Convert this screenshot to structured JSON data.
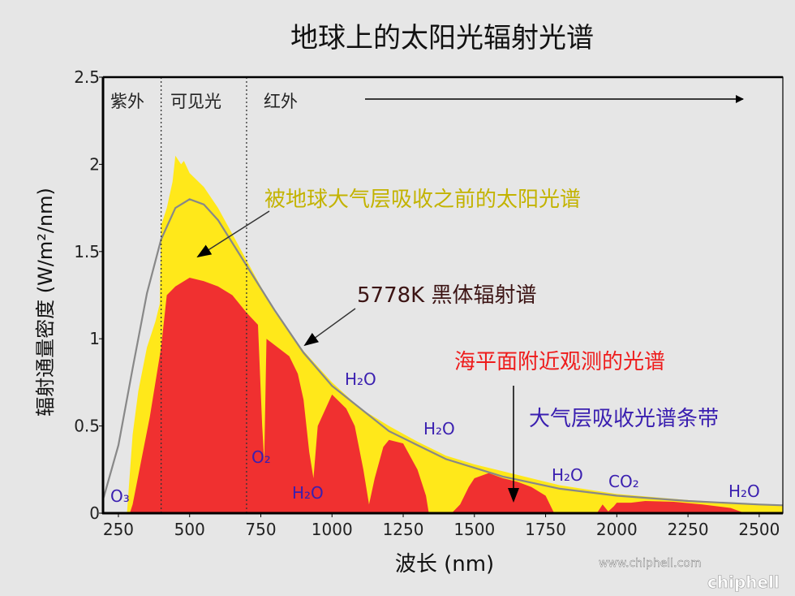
{
  "chart_data": {
    "type": "area",
    "title": "地球上的太阳光辐射光谱",
    "xlabel": "波长 (nm)",
    "ylabel": "辐射通量密度 (W/m²/nm)",
    "xlim": [
      196,
      2583
    ],
    "ylim": [
      0,
      2.5
    ],
    "xticks": [
      250,
      500,
      750,
      1000,
      1250,
      1500,
      1750,
      2000,
      2250,
      2500
    ],
    "yticks": [
      0,
      0.5,
      1,
      1.5,
      2,
      2.5
    ],
    "ytick_labels": [
      "0",
      "0.5",
      "1",
      "1.5",
      "2",
      "2.5"
    ],
    "grid": false,
    "regions": [
      {
        "label": "紫外",
        "to": 400
      },
      {
        "label": "可见光",
        "from": 400,
        "to": 700
      },
      {
        "label": "红外",
        "from": 700
      }
    ],
    "series": [
      {
        "name": "被地球大气层吸收之前的太阳光谱",
        "color": "#ffe81a",
        "x": [
          280,
          300,
          320,
          350,
          380,
          395,
          400,
          420,
          440,
          450,
          470,
          480,
          500,
          550,
          600,
          650,
          700,
          750,
          800,
          900,
          1000,
          1100,
          1200,
          1300,
          1400,
          1500,
          1600,
          1700,
          1800,
          2000,
          2250,
          2500,
          2583
        ],
        "y": [
          0,
          0.45,
          0.7,
          0.95,
          1.1,
          1.2,
          1.65,
          1.75,
          1.9,
          2.05,
          2.0,
          2.02,
          1.95,
          1.87,
          1.75,
          1.6,
          1.45,
          1.3,
          1.15,
          0.93,
          0.75,
          0.6,
          0.5,
          0.41,
          0.33,
          0.28,
          0.24,
          0.2,
          0.16,
          0.11,
          0.075,
          0.05,
          0.045
        ]
      },
      {
        "name": "海平面附近观测的光谱",
        "color": "#f03030",
        "x": [
          290,
          300,
          330,
          360,
          380,
          400,
          420,
          450,
          500,
          550,
          600,
          650,
          700,
          740,
          755,
          762,
          770,
          850,
          880,
          900,
          920,
          935,
          950,
          1000,
          1050,
          1080,
          1110,
          1130,
          1150,
          1180,
          1200,
          1250,
          1300,
          1330,
          1340,
          1420,
          1450,
          1480,
          1500,
          1550,
          1600,
          1650,
          1700,
          1750,
          1780,
          1930,
          1950,
          1970,
          1990,
          2000,
          2050,
          2100,
          2200,
          2300,
          2400,
          2450
        ],
        "y": [
          0,
          0.05,
          0.3,
          0.55,
          0.75,
          0.95,
          1.25,
          1.3,
          1.35,
          1.33,
          1.3,
          1.25,
          1.15,
          1.08,
          0.5,
          0.3,
          1.0,
          0.9,
          0.8,
          0.65,
          0.35,
          0.2,
          0.5,
          0.68,
          0.6,
          0.5,
          0.25,
          0.05,
          0.2,
          0.38,
          0.42,
          0.4,
          0.25,
          0.1,
          0,
          0,
          0.05,
          0.15,
          0.2,
          0.23,
          0.2,
          0.18,
          0.15,
          0.1,
          0,
          0,
          0.05,
          0.01,
          0.04,
          0.06,
          0.06,
          0.07,
          0.065,
          0.05,
          0.03,
          0
        ]
      },
      {
        "name": "5778K 黑体辐射谱",
        "color": "#888888",
        "x": [
          196,
          200,
          250,
          300,
          350,
          400,
          450,
          500,
          550,
          600,
          700,
          800,
          900,
          1000,
          1200,
          1400,
          1600,
          1800,
          2000,
          2250,
          2500,
          2583
        ],
        "y": [
          0.08,
          0.1,
          0.39,
          0.83,
          1.26,
          1.57,
          1.75,
          1.8,
          1.77,
          1.68,
          1.42,
          1.16,
          0.92,
          0.73,
          0.47,
          0.31,
          0.21,
          0.14,
          0.1,
          0.07,
          0.05,
          0.045
        ]
      }
    ],
    "annotations": {
      "toa": {
        "text": "被地球大气层吸收之前的太阳光谱",
        "color": "#c3b300"
      },
      "blackbody": {
        "text": "5778K 黑体辐射谱",
        "color": "#3c1414"
      },
      "sea_level": {
        "text": "海平面附近观测的光谱",
        "color": "#ee1c1c"
      },
      "bands": {
        "text": "大气层吸收光谱条带",
        "color": "#3a1fb0"
      },
      "absorbers": [
        "O₃",
        "O₂",
        "H₂O",
        "H₂O",
        "H₂O",
        "H₂O",
        "CO₂",
        "H₂O"
      ]
    }
  },
  "watermark": {
    "logo": "chiphell",
    "url": "www.chiphell.com"
  }
}
